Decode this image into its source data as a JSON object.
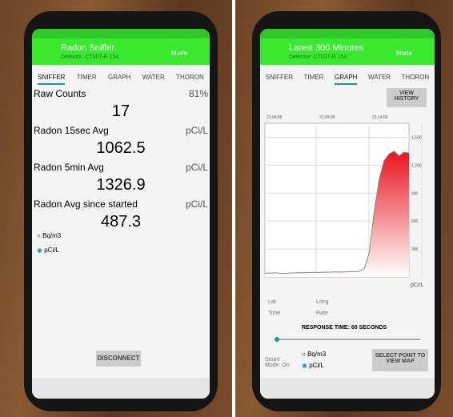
{
  "left_screen": {
    "title": "Radon Sniffer",
    "subtitle": "Detector: CT007-R 154",
    "mode": "Mode",
    "tabs": [
      "SNIFFER",
      "TIMER",
      "GRAPH",
      "WATER",
      "THORON"
    ],
    "readings": [
      {
        "label": "Raw Counts",
        "side": "81%",
        "value": 17
      },
      {
        "label": "Radon 15sec Avg",
        "side": "pCi/L",
        "value": 1062.5
      },
      {
        "label": "Radon 5min Avg",
        "side": "pCi/L",
        "value": 1326.9
      },
      {
        "label": "Radon Avg since started",
        "side": "pCi/L",
        "value": 487.3
      }
    ],
    "units": [
      "Bq/m3",
      "pCi/L"
    ],
    "button": "DISCONNECT"
  },
  "right_screen": {
    "title": "Latest 300 Minutes",
    "subtitle": "Detector: CT007-R 154",
    "mode": "Mode",
    "tabs": [
      "SNIFFER",
      "TIMER",
      "GRAPH",
      "WATER",
      "THORON"
    ],
    "history_button": "VIEW HISTORY",
    "graph": {
      "type": "area",
      "time_labels": [
        "21:04:09",
        "21:09:09",
        "21:14:09"
      ],
      "values": [
        40,
        42,
        45,
        40,
        38,
        42,
        44,
        46,
        45,
        48,
        50,
        47,
        52,
        50,
        55,
        52,
        54,
        58,
        56,
        60,
        90,
        260,
        700,
        1050,
        1250,
        1320,
        1350,
        1300,
        1340,
        1330
      ],
      "ylim": [
        0,
        1650
      ],
      "yticks": [
        300,
        600,
        900,
        {
          "value": 1200,
          "label": "1,200"
        },
        {
          "value": 1500,
          "label": "1,500"
        }
      ],
      "unit": "pCi/L",
      "color": "#e8141e"
    },
    "fields": [
      "Lat",
      "Long",
      "Time",
      "Rate"
    ],
    "response": "RESPONSE TIME: 60 SECONDS",
    "smart_mode": "Smart Mode: On",
    "units": [
      "Bq/m3",
      "pCi/L"
    ],
    "map_button": "SELECT POINT TO VIEW MAP"
  }
}
